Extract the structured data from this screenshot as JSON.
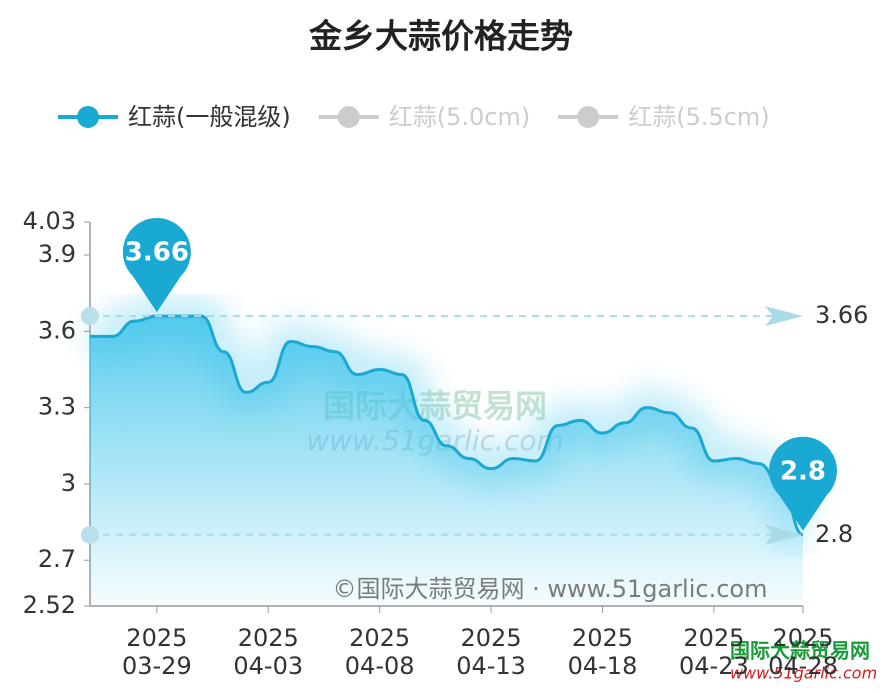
{
  "chart_data": {
    "type": "line",
    "title": "金乡大蒜价格走势",
    "legend": [
      {
        "name": "红蒜(一般混级)",
        "color": "#1aa9d3"
      },
      {
        "name": "红蒜(5.0cm)",
        "color": "#cccccc"
      },
      {
        "name": "红蒜(5.5cm)",
        "color": "#cccccc"
      }
    ],
    "categories": [
      null,
      null,
      null,
      "2025\n03-29",
      null,
      null,
      null,
      null,
      "2025\n04-03",
      null,
      null,
      null,
      null,
      "2025\n04-08",
      null,
      null,
      null,
      null,
      "2025\n04-13",
      null,
      null,
      null,
      null,
      "2025\n04-18",
      null,
      null,
      null,
      null,
      "2025\n04-23",
      null,
      null,
      null,
      "2025\n04-28"
    ],
    "series": [
      {
        "name": "红蒜(一般混级)",
        "color": "#1aa9d3",
        "values": [
          3.58,
          3.58,
          3.64,
          3.66,
          3.66,
          3.66,
          3.52,
          3.36,
          3.4,
          3.56,
          3.54,
          3.52,
          3.43,
          3.45,
          3.43,
          3.25,
          3.15,
          3.1,
          3.06,
          3.1,
          3.09,
          3.23,
          3.25,
          3.2,
          3.24,
          3.3,
          3.28,
          3.22,
          3.09,
          3.1,
          3.08,
          3.0,
          2.8
        ]
      }
    ],
    "ylim": [
      2.52,
      4.03
    ],
    "yticks": [
      2.52,
      2.7,
      3,
      3.3,
      3.6,
      3.9,
      4.03
    ],
    "max_index": 3,
    "min_index": 32,
    "watermark": "©国际大蒜贸易网 · www.51garlic.com",
    "logo_name": "国际大蒜贸易网",
    "logo_url": "www.51garlic.com"
  }
}
